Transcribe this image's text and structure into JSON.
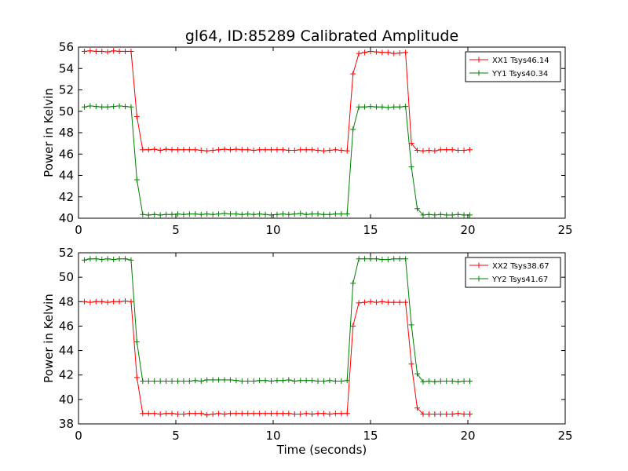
{
  "figure": {
    "title": "gl64, ID:85289 Calibrated Amplitude",
    "xlabel": "Time (seconds)"
  },
  "chart_data": [
    {
      "type": "line",
      "ylabel": "Power in Kelvin",
      "xlim": [
        0,
        25
      ],
      "ylim": [
        40,
        56
      ],
      "xticks": [
        0,
        5,
        10,
        15,
        20,
        25
      ],
      "yticks": [
        40,
        42,
        44,
        46,
        48,
        50,
        52,
        54,
        56
      ],
      "grid": false,
      "legend_position": "top-right",
      "series": [
        {
          "name": "XX1 Tsys46.14",
          "color": "#ff0000",
          "marker": "plus",
          "x": [
            0.3,
            0.6,
            0.9,
            1.2,
            1.5,
            1.8,
            2.1,
            2.4,
            2.7,
            3.0,
            3.3,
            3.6,
            3.9,
            4.2,
            4.5,
            4.8,
            5.1,
            5.4,
            5.7,
            6.0,
            6.3,
            6.6,
            6.9,
            7.2,
            7.5,
            7.8,
            8.1,
            8.4,
            8.7,
            9.0,
            9.3,
            9.6,
            9.9,
            10.2,
            10.5,
            10.8,
            11.1,
            11.4,
            11.7,
            12.0,
            12.3,
            12.6,
            12.9,
            13.2,
            13.5,
            13.8,
            14.1,
            14.4,
            14.7,
            15.0,
            15.3,
            15.6,
            15.9,
            16.2,
            16.5,
            16.8,
            17.1,
            17.4,
            17.7,
            18.0,
            18.3,
            18.6,
            18.9,
            19.2,
            19.5,
            19.8,
            20.1
          ],
          "y": [
            55.6,
            55.65,
            55.6,
            55.6,
            55.55,
            55.65,
            55.6,
            55.6,
            55.6,
            49.5,
            46.4,
            46.4,
            46.45,
            46.35,
            46.45,
            46.4,
            46.4,
            46.4,
            46.4,
            46.4,
            46.35,
            46.3,
            46.35,
            46.4,
            46.45,
            46.4,
            46.45,
            46.4,
            46.4,
            46.35,
            46.4,
            46.4,
            46.4,
            46.4,
            46.4,
            46.35,
            46.35,
            46.4,
            46.4,
            46.4,
            46.35,
            46.3,
            46.35,
            46.4,
            46.35,
            46.3,
            53.5,
            55.4,
            55.5,
            55.6,
            55.55,
            55.5,
            55.5,
            55.4,
            55.45,
            55.5,
            47.0,
            46.35,
            46.3,
            46.35,
            46.3,
            46.4,
            46.4,
            46.4,
            46.35,
            46.35,
            46.4
          ]
        },
        {
          "name": "YY1 Tsys40.34",
          "color": "#008000",
          "marker": "plus",
          "x": [
            0.3,
            0.6,
            0.9,
            1.2,
            1.5,
            1.8,
            2.1,
            2.4,
            2.7,
            3.0,
            3.3,
            3.6,
            3.9,
            4.2,
            4.5,
            4.8,
            5.1,
            5.4,
            5.7,
            6.0,
            6.3,
            6.6,
            6.9,
            7.2,
            7.5,
            7.8,
            8.1,
            8.4,
            8.7,
            9.0,
            9.3,
            9.6,
            9.9,
            10.2,
            10.5,
            10.8,
            11.1,
            11.4,
            11.7,
            12.0,
            12.3,
            12.6,
            12.9,
            13.2,
            13.5,
            13.8,
            14.1,
            14.4,
            14.7,
            15.0,
            15.3,
            15.6,
            15.9,
            16.2,
            16.5,
            16.8,
            17.1,
            17.4,
            17.7,
            18.0,
            18.3,
            18.6,
            18.9,
            19.2,
            19.5,
            19.8,
            20.1
          ],
          "y": [
            50.4,
            50.5,
            50.45,
            50.4,
            50.4,
            50.45,
            50.5,
            50.45,
            50.4,
            43.6,
            40.35,
            40.3,
            40.35,
            40.3,
            40.35,
            40.35,
            40.4,
            40.35,
            40.4,
            40.4,
            40.35,
            40.4,
            40.35,
            40.4,
            40.45,
            40.4,
            40.4,
            40.35,
            40.4,
            40.35,
            40.4,
            40.35,
            40.3,
            40.35,
            40.4,
            40.35,
            40.4,
            40.45,
            40.35,
            40.4,
            40.4,
            40.35,
            40.35,
            40.4,
            40.4,
            40.4,
            48.3,
            50.4,
            50.4,
            50.45,
            50.4,
            50.4,
            50.35,
            50.4,
            50.4,
            50.45,
            44.8,
            40.9,
            40.3,
            40.35,
            40.3,
            40.35,
            40.3,
            40.3,
            40.35,
            40.3,
            40.3
          ]
        }
      ]
    },
    {
      "type": "line",
      "ylabel": "Power in Kelvin",
      "xlim": [
        0,
        25
      ],
      "ylim": [
        38,
        52
      ],
      "xticks": [
        0,
        5,
        10,
        15,
        20,
        25
      ],
      "yticks": [
        38,
        40,
        42,
        44,
        46,
        48,
        50,
        52
      ],
      "grid": false,
      "legend_position": "top-right",
      "series": [
        {
          "name": "XX2 Tsys38.67",
          "color": "#ff0000",
          "marker": "plus",
          "x": [
            0.3,
            0.6,
            0.9,
            1.2,
            1.5,
            1.8,
            2.1,
            2.4,
            2.7,
            3.0,
            3.3,
            3.6,
            3.9,
            4.2,
            4.5,
            4.8,
            5.1,
            5.4,
            5.7,
            6.0,
            6.3,
            6.6,
            6.9,
            7.2,
            7.5,
            7.8,
            8.1,
            8.4,
            8.7,
            9.0,
            9.3,
            9.6,
            9.9,
            10.2,
            10.5,
            10.8,
            11.1,
            11.4,
            11.7,
            12.0,
            12.3,
            12.6,
            12.9,
            13.2,
            13.5,
            13.8,
            14.1,
            14.4,
            14.7,
            15.0,
            15.3,
            15.6,
            15.9,
            16.2,
            16.5,
            16.8,
            17.1,
            17.4,
            17.7,
            18.0,
            18.3,
            18.6,
            18.9,
            19.2,
            19.5,
            19.8,
            20.1
          ],
          "y": [
            48.0,
            47.95,
            48.0,
            48.0,
            47.95,
            48.0,
            48.0,
            48.05,
            48.0,
            41.8,
            38.85,
            38.85,
            38.85,
            38.8,
            38.85,
            38.85,
            38.8,
            38.8,
            38.85,
            38.85,
            38.85,
            38.75,
            38.8,
            38.85,
            38.8,
            38.85,
            38.85,
            38.85,
            38.85,
            38.85,
            38.85,
            38.85,
            38.85,
            38.85,
            38.85,
            38.85,
            38.8,
            38.8,
            38.85,
            38.8,
            38.85,
            38.85,
            38.8,
            38.85,
            38.85,
            38.85,
            46.0,
            47.9,
            47.95,
            48.0,
            47.95,
            48.0,
            47.95,
            47.95,
            47.95,
            47.95,
            42.9,
            39.3,
            38.8,
            38.8,
            38.8,
            38.8,
            38.8,
            38.8,
            38.85,
            38.8,
            38.8
          ]
        },
        {
          "name": "YY2 Tsys41.67",
          "color": "#008000",
          "marker": "plus",
          "x": [
            0.3,
            0.6,
            0.9,
            1.2,
            1.5,
            1.8,
            2.1,
            2.4,
            2.7,
            3.0,
            3.3,
            3.6,
            3.9,
            4.2,
            4.5,
            4.8,
            5.1,
            5.4,
            5.7,
            6.0,
            6.3,
            6.6,
            6.9,
            7.2,
            7.5,
            7.8,
            8.1,
            8.4,
            8.7,
            9.0,
            9.3,
            9.6,
            9.9,
            10.2,
            10.5,
            10.8,
            11.1,
            11.4,
            11.7,
            12.0,
            12.3,
            12.6,
            12.9,
            13.2,
            13.5,
            13.8,
            14.1,
            14.4,
            14.7,
            15.0,
            15.3,
            15.6,
            15.9,
            16.2,
            16.5,
            16.8,
            17.1,
            17.4,
            17.7,
            18.0,
            18.3,
            18.6,
            18.9,
            19.2,
            19.5,
            19.8,
            20.1
          ],
          "y": [
            51.4,
            51.5,
            51.5,
            51.45,
            51.5,
            51.45,
            51.5,
            51.5,
            51.4,
            44.7,
            41.5,
            41.5,
            41.5,
            41.5,
            41.5,
            41.5,
            41.5,
            41.5,
            41.5,
            41.55,
            41.5,
            41.6,
            41.6,
            41.6,
            41.6,
            41.6,
            41.55,
            41.5,
            41.5,
            41.5,
            41.55,
            41.55,
            41.5,
            41.55,
            41.55,
            41.6,
            41.5,
            41.55,
            41.55,
            41.55,
            41.5,
            41.5,
            41.55,
            41.5,
            41.5,
            41.55,
            49.5,
            51.5,
            51.5,
            51.5,
            51.5,
            51.45,
            51.45,
            51.5,
            51.5,
            51.5,
            46.1,
            42.1,
            41.45,
            41.5,
            41.45,
            41.5,
            41.5,
            41.5,
            41.45,
            41.5,
            41.5
          ]
        }
      ]
    }
  ]
}
